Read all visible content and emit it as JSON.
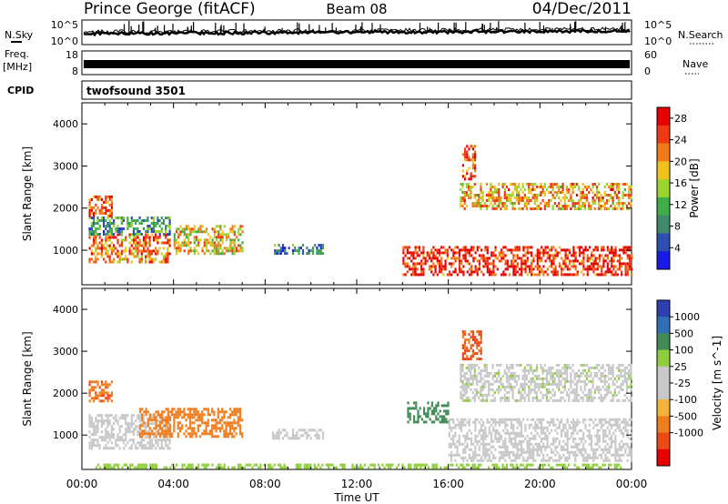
{
  "header": {
    "station": "Prince George (fitACF)",
    "beam": "Beam 08",
    "date": "04/Dec/2011"
  },
  "strips": {
    "nsky_label": "N.Sky",
    "nsearch_label": "N.Search",
    "freq_label_1": "Freq.",
    "freq_label_2": "[MHz]",
    "nave_label": "Nave",
    "cpid_label": "CPID",
    "cpid_value": "twofsound 3501",
    "noise_ticks_left": [
      "10^5",
      "10^0"
    ],
    "noise_ticks_right": [
      "10^5",
      "10^0"
    ],
    "freq_ticks": [
      "18",
      "8"
    ],
    "nave_ticks": [
      "60",
      "0"
    ]
  },
  "colors": {
    "power_scale": [
      "#1a1ae6",
      "#2d4fb0",
      "#3f8a6a",
      "#3fae46",
      "#9ad42c",
      "#f2c21c",
      "#f07a1a",
      "#ee3a12",
      "#e60000"
    ],
    "velocity_scale": [
      "#2e3fb0",
      "#2f6fb6",
      "#3f8a55",
      "#8fce3e",
      "#c8c8c8",
      "#c8c8c8",
      "#f4b23a",
      "#f07d1e",
      "#ee4a18",
      "#e60000"
    ]
  },
  "chart_data": [
    {
      "type": "heatmap",
      "name": "power-panel",
      "title": "",
      "xlabel": "",
      "ylabel": "Slant Range [km]",
      "xlim": [
        0,
        24
      ],
      "ylim": [
        180,
        4500
      ],
      "x_ticks": [
        "00:00",
        "04:00",
        "08:00",
        "12:00",
        "16:00",
        "20:00",
        "00:00"
      ],
      "y_ticks": [
        "1000",
        "2000",
        "3000",
        "4000"
      ],
      "colorbar_label": "Power [dB]",
      "colorbar_ticks": [
        "4",
        "8",
        "12",
        "16",
        "20",
        "24",
        "28"
      ],
      "colorbar_range": [
        0,
        30
      ],
      "regions": [
        {
          "t0": 0.3,
          "t1": 3.8,
          "r0": 700,
          "r1": 1400,
          "value": 22
        },
        {
          "t0": 0.3,
          "t1": 3.8,
          "r0": 1400,
          "r1": 1800,
          "value": 10
        },
        {
          "t0": 4.0,
          "t1": 7.0,
          "r0": 950,
          "r1": 1600,
          "value": 18
        },
        {
          "t0": 8.3,
          "t1": 10.5,
          "r0": 900,
          "r1": 1150,
          "value": 8
        },
        {
          "t0": 14.0,
          "t1": 24.0,
          "r0": 400,
          "r1": 1100,
          "value": 26
        },
        {
          "t0": 16.5,
          "t1": 24.0,
          "r0": 2000,
          "r1": 2600,
          "value": 20
        },
        {
          "t0": 16.6,
          "t1": 17.2,
          "r0": 2700,
          "r1": 3500,
          "value": 24
        },
        {
          "t0": 0.3,
          "t1": 1.3,
          "r0": 1800,
          "r1": 2300,
          "value": 24
        }
      ]
    },
    {
      "type": "heatmap",
      "name": "velocity-panel",
      "title": "",
      "xlabel": "Time UT",
      "ylabel": "Slant Range [km]",
      "xlim": [
        0,
        24
      ],
      "ylim": [
        180,
        4500
      ],
      "x_ticks": [
        "00:00",
        "04:00",
        "08:00",
        "12:00",
        "16:00",
        "20:00",
        "00:00"
      ],
      "y_ticks": [
        "1000",
        "2000",
        "3000",
        "4000"
      ],
      "colorbar_label": "Velocity [m s^-1]",
      "colorbar_ticks": [
        "1000",
        "500",
        "100",
        "25",
        "-25",
        "-100",
        "-500",
        "-1000"
      ],
      "colorbar_range": [
        -1000,
        1000
      ],
      "regions": [
        {
          "t0": 0.3,
          "t1": 3.8,
          "r0": 700,
          "r1": 1500,
          "value": 0
        },
        {
          "t0": 2.5,
          "t1": 7.0,
          "r0": 950,
          "r1": 1650,
          "value": -300
        },
        {
          "t0": 8.3,
          "t1": 10.5,
          "r0": 900,
          "r1": 1150,
          "value": 0
        },
        {
          "t0": 14.2,
          "t1": 16.0,
          "r0": 1300,
          "r1": 1800,
          "value": 200
        },
        {
          "t0": 16.0,
          "t1": 24.0,
          "r0": 400,
          "r1": 1400,
          "value": 0
        },
        {
          "t0": 16.5,
          "t1": 24.0,
          "r0": 1800,
          "r1": 2700,
          "value": 10
        },
        {
          "t0": 0.3,
          "t1": 1.3,
          "r0": 1800,
          "r1": 2300,
          "value": -400
        },
        {
          "t0": 16.6,
          "t1": 17.4,
          "r0": 2800,
          "r1": 3500,
          "value": -600
        },
        {
          "t0": 0.5,
          "t1": 23.5,
          "r0": 200,
          "r1": 320,
          "value": 60
        }
      ]
    }
  ]
}
